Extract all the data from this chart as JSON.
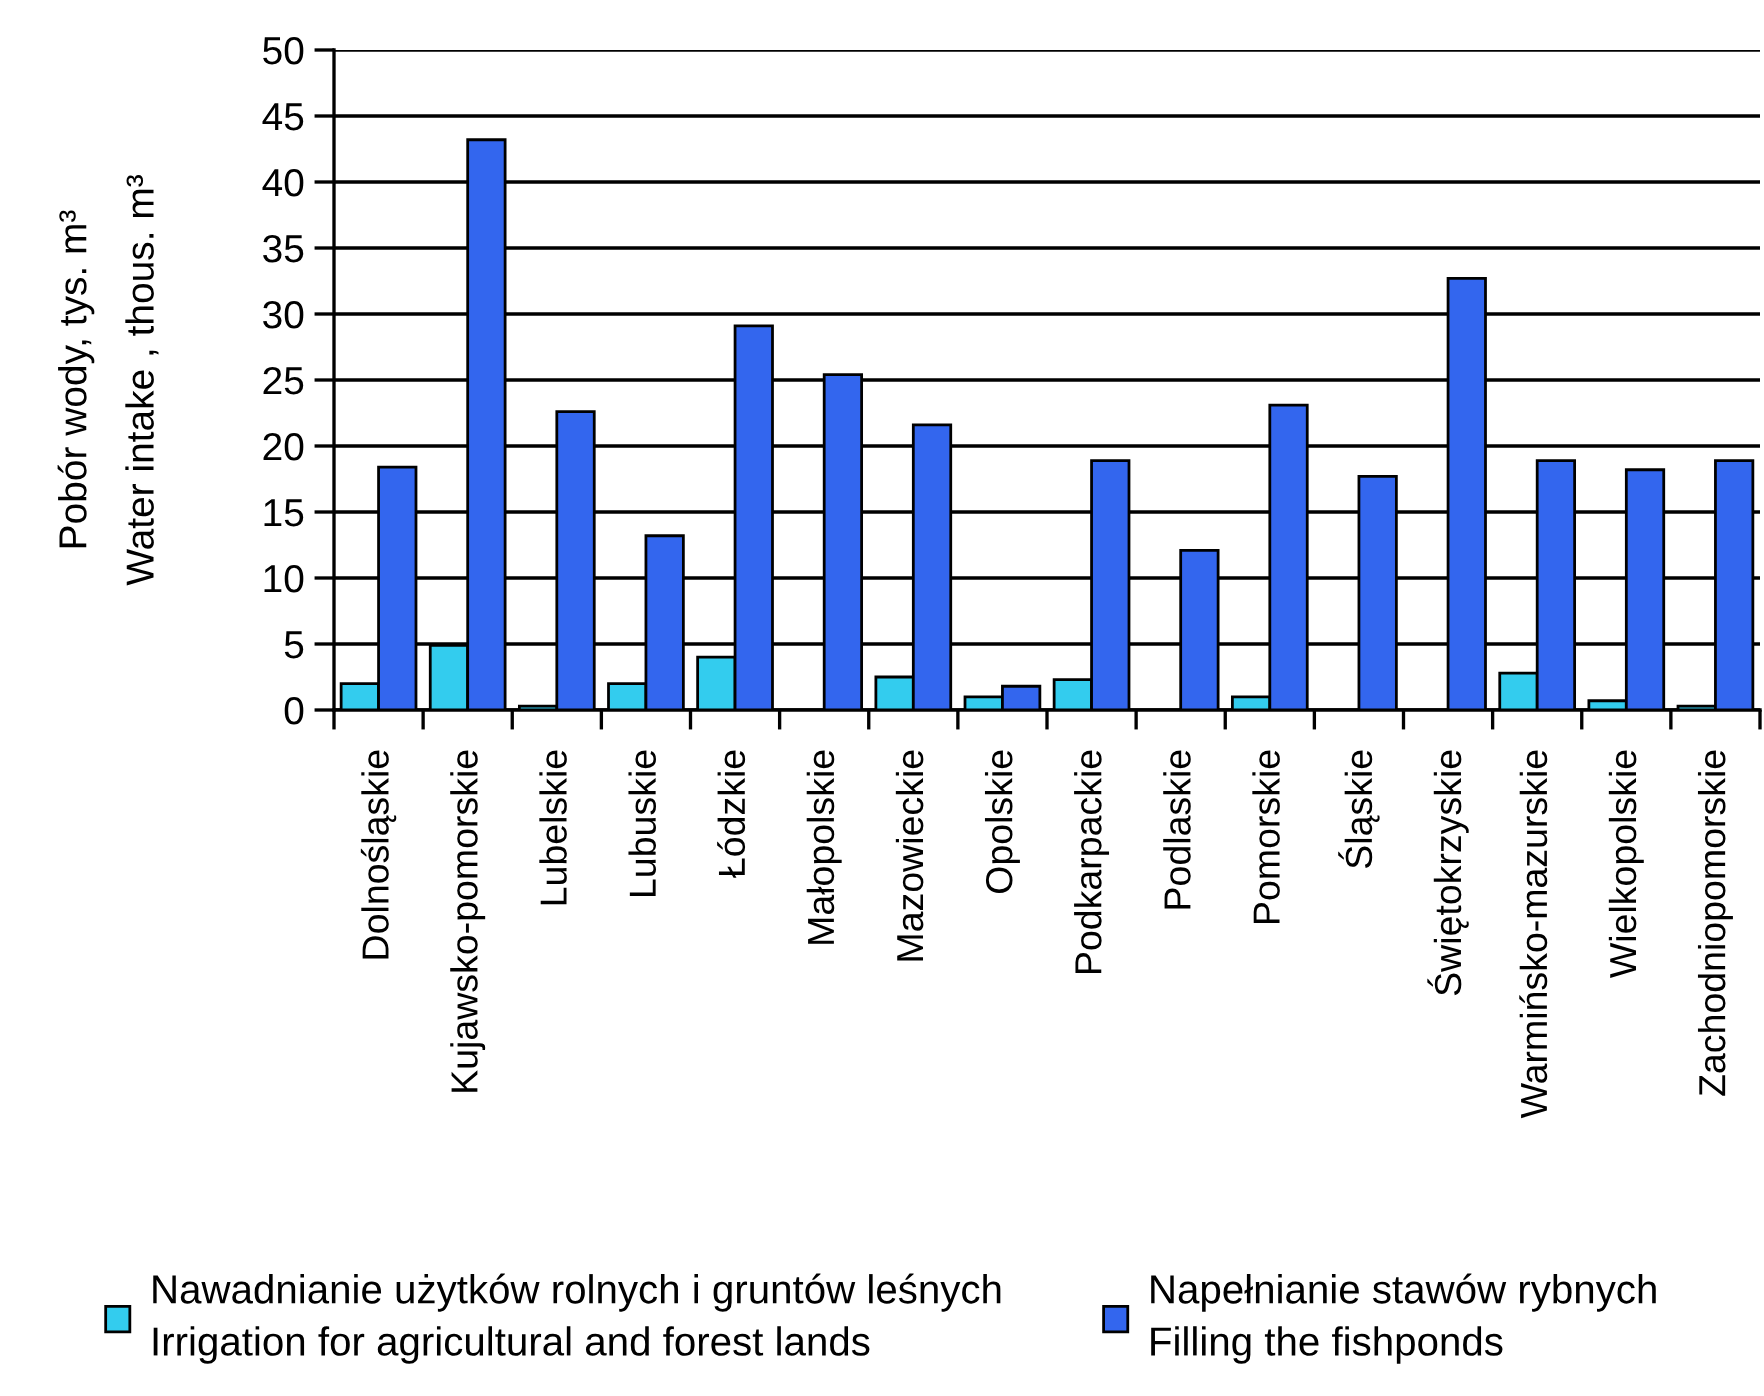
{
  "chart_data": {
    "type": "bar",
    "ylabel": "Pobór wody, tys. m³\nWater intake , thous. m³",
    "categories": [
      "Dolnośląskie",
      "Kujawsko-pomorskie",
      "Lubelskie",
      "Lubuskie",
      "Łódzkie",
      "Małopolskie",
      "Mazowieckie",
      "Opolskie",
      "Podkarpackie",
      "Podlaskie",
      "Pomorskie",
      "Śląskie",
      "Świętokrzyskie",
      "Warmińsko-mazurskie",
      "Wielkopolskie",
      "Zachodniopomorskie"
    ],
    "series": [
      {
        "name": "Nawadnianie użytków rolnych i gruntów leśnych\nIrrigation for agricultural and forest lands",
        "color": "#33ccee",
        "values": [
          2.0,
          4.9,
          0.3,
          2.0,
          4.0,
          null,
          2.5,
          1.0,
          2.3,
          null,
          1.0,
          null,
          null,
          2.8,
          0.7,
          0.3
        ]
      },
      {
        "name": "Napełnianie stawów rybnych\nFilling the fishponds",
        "color": "#3366ee",
        "values": [
          18.4,
          43.2,
          22.6,
          13.2,
          29.1,
          25.4,
          21.6,
          1.8,
          18.9,
          12.1,
          23.1,
          17.7,
          32.7,
          18.9,
          18.2,
          18.9
        ]
      }
    ],
    "ylim": [
      0,
      50
    ],
    "yticks": [
      0,
      5,
      10,
      15,
      20,
      25,
      30,
      35,
      40,
      45,
      50
    ],
    "grid": "y",
    "legend": "bottom"
  }
}
